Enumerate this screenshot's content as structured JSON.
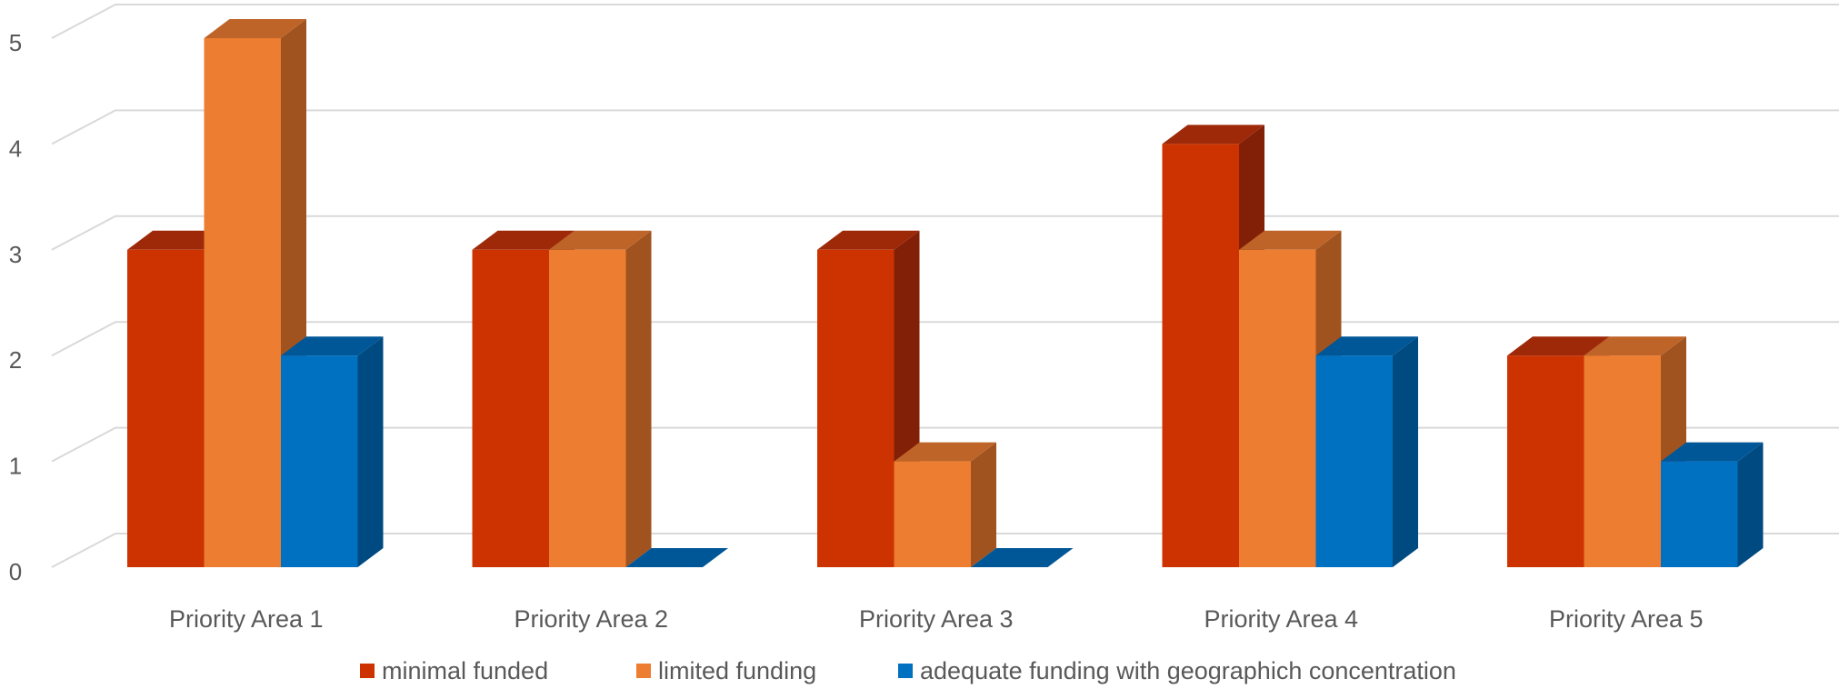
{
  "chart_data": {
    "type": "bar",
    "title": "",
    "xlabel": "",
    "ylabel": "",
    "ylim": [
      0,
      5
    ],
    "y_ticks": [
      "0",
      "1",
      "2",
      "3",
      "4",
      "5"
    ],
    "categories": [
      "Priority Area 1",
      "Priority Area 2",
      "Priority Area 3",
      "Priority Area 4",
      "Priority Area 5"
    ],
    "series": [
      {
        "name": "minimal  funded",
        "values": [
          3,
          3,
          3,
          4,
          2
        ],
        "color": "#CC3300",
        "side_color": "#822007",
        "top_color": "#9E2908"
      },
      {
        "name": "limited funding",
        "values": [
          5,
          3,
          1,
          3,
          2
        ],
        "color": "#ED7D31",
        "side_color": "#A0531F",
        "top_color": "#BE6428"
      },
      {
        "name": "adequate funding with geographich concentration",
        "values": [
          2,
          0,
          0,
          2,
          1
        ],
        "color": "#0070C0",
        "side_color": "#004A82",
        "top_color": "#005797"
      }
    ],
    "grid": true,
    "legend_position": "bottom",
    "style": "3d-clustered-column"
  }
}
